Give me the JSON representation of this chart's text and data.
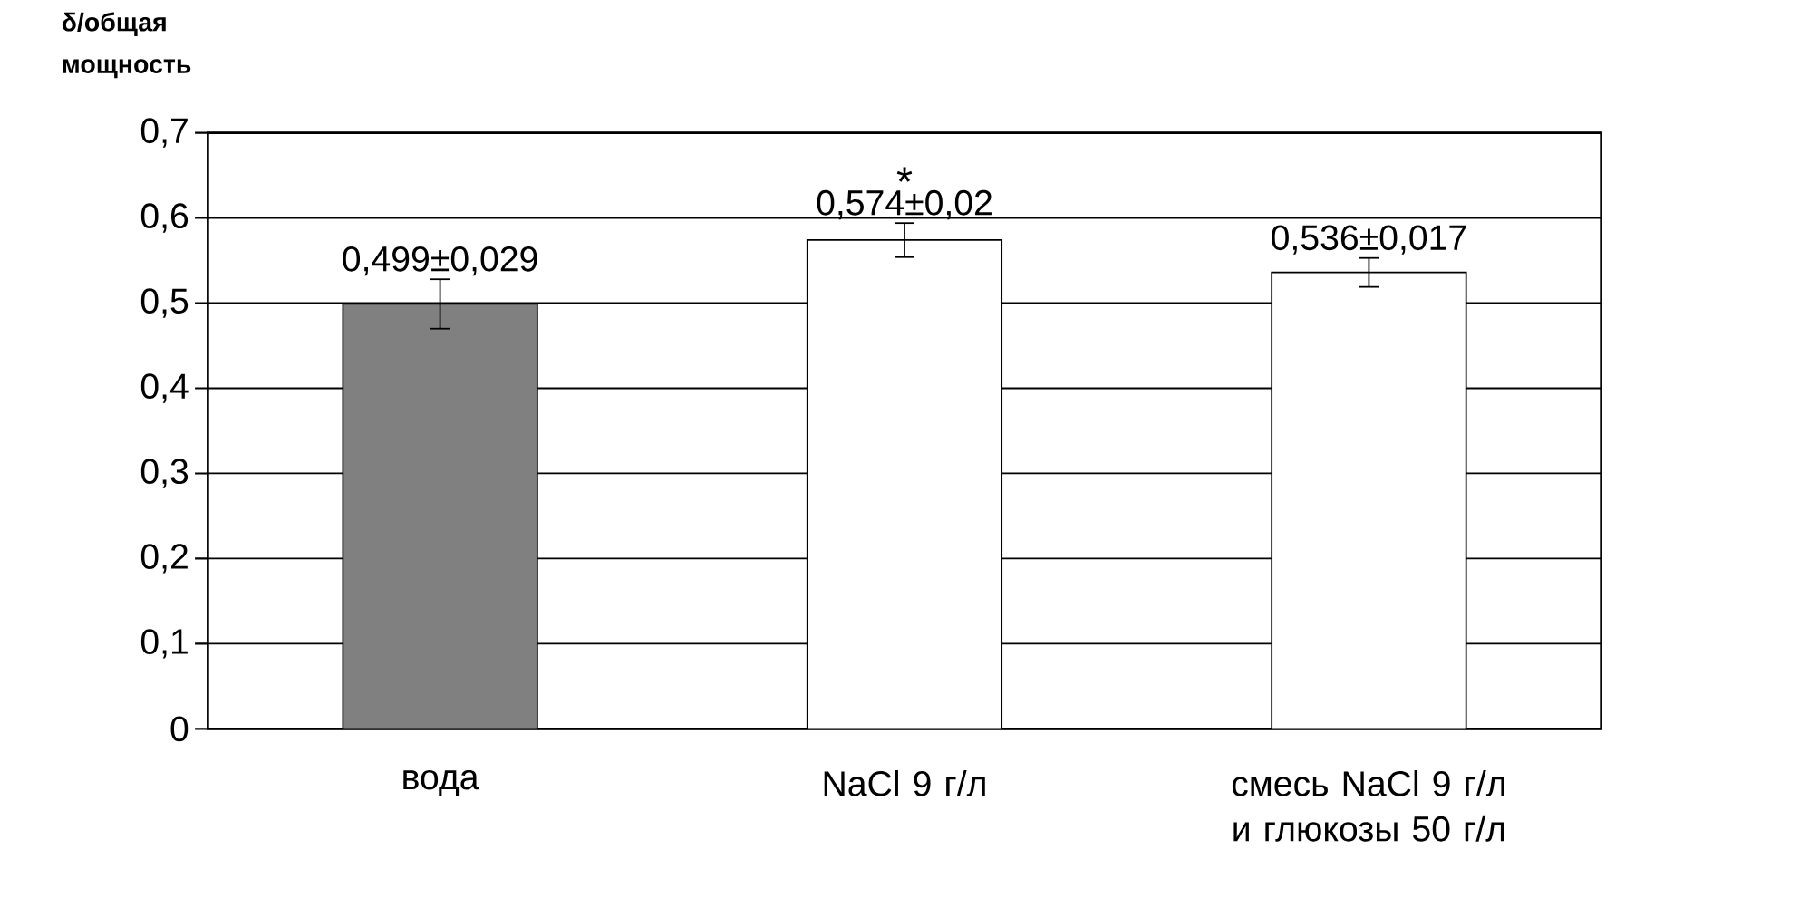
{
  "chart_data": {
    "type": "bar",
    "ylabel": "δ/общая мощность",
    "categories": [
      "вода",
      "NaCl 9 г/л",
      "смесь NaCl 9 г/л и глюкозы 50 г/л"
    ],
    "values": [
      0.499,
      0.574,
      0.536
    ],
    "errors": [
      0.029,
      0.02,
      0.017
    ],
    "colors": [
      "#808080",
      "#ffffff",
      "#ffffff"
    ],
    "value_labels": [
      "0,499±0,029",
      "0,574±0,02",
      "0,536±0,017"
    ],
    "annotations": [
      "*"
    ],
    "ylim": [
      0,
      0.7
    ],
    "yticks": [
      0,
      {
        "value": 0.1,
        "label": "0,1"
      },
      {
        "value": 0.2,
        "label": "0,2"
      },
      {
        "value": 0.3,
        "label": "0,3"
      },
      {
        "value": 0.4,
        "label": "0,4"
      },
      {
        "value": 0.5,
        "label": "0,5"
      },
      {
        "value": 0.6,
        "label": "0,6"
      },
      {
        "value": 0.7,
        "label": "0,7"
      }
    ],
    "grid": "y"
  }
}
